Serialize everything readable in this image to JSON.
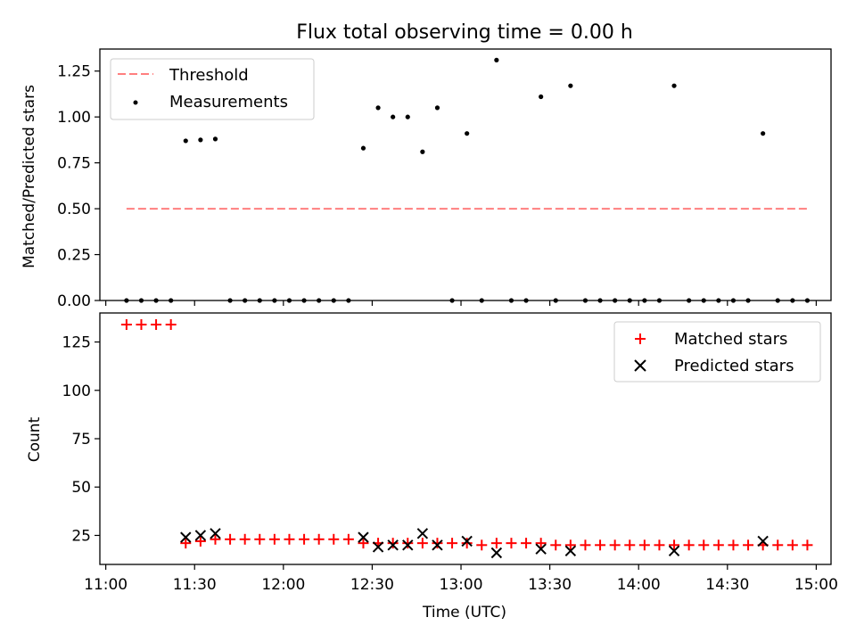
{
  "chart_data": [
    {
      "type": "scatter",
      "title": "Flux total observing time = 0.00 h",
      "xlabel": "",
      "ylabel": "Matched/Predicted stars",
      "xlim": [
        "11:00",
        "15:00"
      ],
      "ylim": [
        0,
        1.37
      ],
      "yticks": [
        0.0,
        0.25,
        0.5,
        0.75,
        1.0,
        1.25
      ],
      "ytick_labels": [
        "0.00",
        "0.25",
        "0.50",
        "0.75",
        "1.00",
        "1.25"
      ],
      "series": [
        {
          "name": "Threshold",
          "kind": "line",
          "style": "dashed",
          "color": "#ff7f7f",
          "x": [
            "11:07",
            "14:57"
          ],
          "y": [
            0.5,
            0.5
          ]
        },
        {
          "name": "Measurements",
          "kind": "points",
          "color": "#000000",
          "x": [
            "11:07",
            "11:12",
            "11:17",
            "11:22",
            "11:27",
            "11:32",
            "11:37",
            "11:42",
            "11:47",
            "11:52",
            "11:57",
            "12:02",
            "12:07",
            "12:12",
            "12:17",
            "12:22",
            "12:27",
            "12:32",
            "12:37",
            "12:42",
            "12:47",
            "12:52",
            "12:57",
            "13:02",
            "13:07",
            "13:12",
            "13:17",
            "13:22",
            "13:27",
            "13:32",
            "13:37",
            "13:42",
            "13:47",
            "13:52",
            "13:57",
            "14:02",
            "14:07",
            "14:12",
            "14:17",
            "14:22",
            "14:27",
            "14:32",
            "14:37",
            "14:42",
            "14:47",
            "14:52",
            "14:57"
          ],
          "y": [
            0,
            0,
            0,
            0,
            0.87,
            0.875,
            0.88,
            0,
            0,
            0,
            0,
            0,
            0,
            0,
            0,
            0,
            0.83,
            1.05,
            1.0,
            1.0,
            0.81,
            1.05,
            0,
            0.91,
            0,
            1.31,
            0,
            0,
            1.11,
            0,
            1.17,
            0,
            0,
            0,
            0,
            0,
            0,
            1.17,
            0,
            0,
            0,
            0,
            0,
            0.91,
            0,
            0,
            0
          ]
        }
      ],
      "legend": {
        "placement": "top-left",
        "entries": [
          "Threshold",
          "Measurements"
        ]
      }
    },
    {
      "type": "scatter",
      "title": "",
      "xlabel": "Time (UTC)",
      "ylabel": "Count",
      "xlim": [
        "11:00",
        "15:00"
      ],
      "ylim": [
        10,
        140
      ],
      "xticks": [
        "11:00",
        "11:30",
        "12:00",
        "12:30",
        "13:00",
        "13:30",
        "14:00",
        "14:30",
        "15:00"
      ],
      "yticks": [
        25,
        50,
        75,
        100,
        125
      ],
      "ytick_labels": [
        "25",
        "50",
        "75",
        "100",
        "125"
      ],
      "series": [
        {
          "name": "Matched stars",
          "marker": "+",
          "color": "#ff0000",
          "x": [
            "11:07",
            "11:12",
            "11:17",
            "11:22",
            "11:27",
            "11:32",
            "11:37",
            "11:42",
            "11:47",
            "11:52",
            "11:57",
            "12:02",
            "12:07",
            "12:12",
            "12:17",
            "12:22",
            "12:27",
            "12:32",
            "12:37",
            "12:42",
            "12:47",
            "12:52",
            "12:57",
            "13:02",
            "13:07",
            "13:12",
            "13:17",
            "13:22",
            "13:27",
            "13:32",
            "13:37",
            "13:42",
            "13:47",
            "13:52",
            "13:57",
            "14:02",
            "14:07",
            "14:12",
            "14:17",
            "14:22",
            "14:27",
            "14:32",
            "14:37",
            "14:42",
            "14:47",
            "14:52",
            "14:57"
          ],
          "y": [
            134,
            134,
            134,
            134,
            21,
            22,
            23,
            23,
            23,
            23,
            23,
            23,
            23,
            23,
            23,
            23,
            21,
            21,
            21,
            21,
            21,
            21,
            21,
            21,
            20,
            21,
            21,
            21,
            21,
            20,
            20,
            20,
            20,
            20,
            20,
            20,
            20,
            20,
            20,
            20,
            20,
            20,
            20,
            20,
            20,
            20,
            20
          ]
        },
        {
          "name": "Predicted stars",
          "marker": "x",
          "color": "#000000",
          "x": [
            "11:27",
            "11:32",
            "11:37",
            "12:27",
            "12:32",
            "12:37",
            "12:42",
            "12:47",
            "12:52",
            "13:02",
            "13:12",
            "13:27",
            "13:37",
            "14:12",
            "14:42"
          ],
          "y": [
            24,
            25,
            26,
            24,
            19,
            20,
            20,
            26,
            20,
            22,
            16,
            18,
            17,
            17,
            22
          ]
        }
      ],
      "legend": {
        "placement": "top-right",
        "entries": [
          "Matched stars",
          "Predicted stars"
        ]
      }
    }
  ]
}
